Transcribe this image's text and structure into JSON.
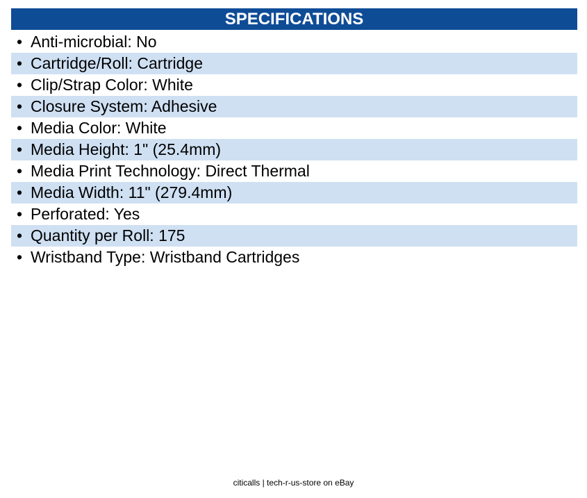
{
  "header": {
    "title": "SPECIFICATIONS"
  },
  "specs": [
    "Anti-microbial: No",
    "Cartridge/Roll: Cartridge",
    "Clip/Strap Color: White",
    "Closure System: Adhesive",
    "Media Color: White",
    "Media Height: 1\" (25.4mm)",
    "Media Print Technology: Direct Thermal",
    "Media Width: 11\" (279.4mm)",
    "Perforated: Yes",
    "Quantity per Roll: 175",
    "Wristband Type: Wristband Cartridges"
  ],
  "footer": {
    "text": "citicalls | tech-r-us-store on eBay"
  }
}
